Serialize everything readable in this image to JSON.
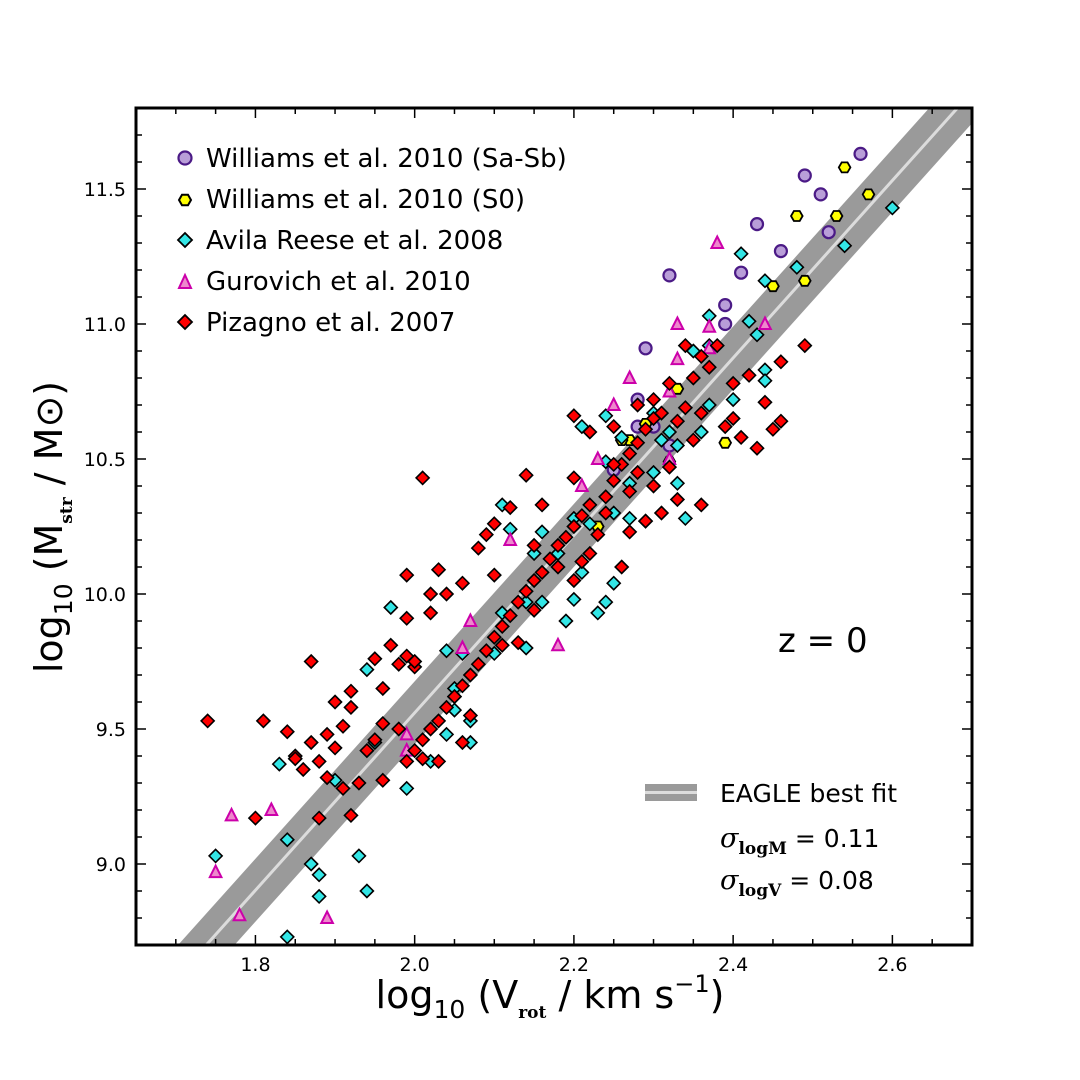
{
  "chart_data": {
    "type": "scatter",
    "xlabel": {
      "prefix": "log",
      "sub": "10",
      "open": " (V",
      "var_sub": "rot",
      "unit": " / km s",
      "sup": "−1",
      "close": ")"
    },
    "ylabel": {
      "prefix": "log",
      "sub": "10",
      "open": " (M",
      "var_sub": "str",
      "unit": " / M",
      "sun": "⊙",
      "close": ")"
    },
    "xlim": [
      1.65,
      2.7
    ],
    "ylim": [
      8.7,
      11.8
    ],
    "xticks": [
      "1.8",
      "2.0",
      "2.2",
      "2.4",
      "2.6"
    ],
    "yticks": [
      "9.0",
      "9.5",
      "10.0",
      "10.5",
      "11.0",
      "11.5"
    ],
    "annotation": "z = 0",
    "fit": {
      "name": "EAGLE best fit",
      "x": [
        1.72,
        2.7
      ],
      "y": [
        8.64,
        11.86
      ],
      "sigma_logM_label": {
        "sym": "σ",
        "sub": "logM",
        "val": " = 0.11"
      },
      "sigma_logV_label": {
        "sym": "σ",
        "sub": "logV",
        "val": " = 0.08"
      },
      "band_color": "#9a9a9a",
      "line_color": "#dcdcdc"
    },
    "series": [
      {
        "name": "Williams et al. 2010 (Sa-Sb)",
        "marker": "circle",
        "fill": "#b99ed8",
        "edge": "#4b1a86",
        "points": [
          [
            2.56,
            11.63
          ],
          [
            2.49,
            11.55
          ],
          [
            2.51,
            11.48
          ],
          [
            2.43,
            11.37
          ],
          [
            2.52,
            11.34
          ],
          [
            2.46,
            11.27
          ],
          [
            2.32,
            11.18
          ],
          [
            2.41,
            11.19
          ],
          [
            2.39,
            11.07
          ],
          [
            2.39,
            11.0
          ],
          [
            2.29,
            10.91
          ],
          [
            2.28,
            10.72
          ],
          [
            2.25,
            10.46
          ],
          [
            2.3,
            10.62
          ],
          [
            2.28,
            10.62
          ],
          [
            2.32,
            10.55
          ]
        ]
      },
      {
        "name": "Williams et al. 2010 (S0)",
        "marker": "hexagon",
        "fill": "#ffff00",
        "edge": "#000000",
        "points": [
          [
            2.54,
            11.58
          ],
          [
            2.57,
            11.48
          ],
          [
            2.48,
            11.4
          ],
          [
            2.53,
            11.4
          ],
          [
            2.45,
            11.14
          ],
          [
            2.49,
            11.16
          ],
          [
            2.33,
            10.76
          ],
          [
            2.27,
            10.57
          ],
          [
            2.29,
            10.63
          ],
          [
            2.32,
            10.49
          ],
          [
            2.39,
            10.56
          ],
          [
            2.23,
            10.25
          ],
          [
            2.26,
            10.57
          ]
        ]
      },
      {
        "name": "Avila Reese et al. 2008",
        "marker": "diamond",
        "fill": "#33e6e6",
        "edge": "#000000",
        "points": [
          [
            2.6,
            11.43
          ],
          [
            2.54,
            11.29
          ],
          [
            2.48,
            11.21
          ],
          [
            2.41,
            11.26
          ],
          [
            2.44,
            11.16
          ],
          [
            2.37,
            11.03
          ],
          [
            2.43,
            10.96
          ],
          [
            2.42,
            11.01
          ],
          [
            2.37,
            10.92
          ],
          [
            2.35,
            10.9
          ],
          [
            2.44,
            10.83
          ],
          [
            2.44,
            10.79
          ],
          [
            2.4,
            10.72
          ],
          [
            2.37,
            10.7
          ],
          [
            2.36,
            10.6
          ],
          [
            2.32,
            10.6
          ],
          [
            2.31,
            10.57
          ],
          [
            2.3,
            10.67
          ],
          [
            2.33,
            10.55
          ],
          [
            2.26,
            10.58
          ],
          [
            2.24,
            10.66
          ],
          [
            2.21,
            10.62
          ],
          [
            2.24,
            10.49
          ],
          [
            2.3,
            10.45
          ],
          [
            2.33,
            10.41
          ],
          [
            2.27,
            10.41
          ],
          [
            2.25,
            10.3
          ],
          [
            2.27,
            10.28
          ],
          [
            2.34,
            10.28
          ],
          [
            2.29,
            10.27
          ],
          [
            2.2,
            10.28
          ],
          [
            2.22,
            10.26
          ],
          [
            2.16,
            10.23
          ],
          [
            2.12,
            10.24
          ],
          [
            2.15,
            10.15
          ],
          [
            2.18,
            10.15
          ],
          [
            2.21,
            10.08
          ],
          [
            2.25,
            10.04
          ],
          [
            2.2,
            9.98
          ],
          [
            2.24,
            9.97
          ],
          [
            2.23,
            9.93
          ],
          [
            2.16,
            9.97
          ],
          [
            2.14,
            9.97
          ],
          [
            2.19,
            9.9
          ],
          [
            2.11,
            9.93
          ],
          [
            2.14,
            9.8
          ],
          [
            2.1,
            9.78
          ],
          [
            2.06,
            9.78
          ],
          [
            2.04,
            9.79
          ],
          [
            1.97,
            9.95
          ],
          [
            1.94,
            9.72
          ],
          [
            2.05,
            9.65
          ],
          [
            2.07,
            9.53
          ],
          [
            2.05,
            9.57
          ],
          [
            2.04,
            9.48
          ],
          [
            2.07,
            9.45
          ],
          [
            2.02,
            9.38
          ],
          [
            1.95,
            9.45
          ],
          [
            1.83,
            9.37
          ],
          [
            1.9,
            9.31
          ],
          [
            1.99,
            9.28
          ],
          [
            1.84,
            9.09
          ],
          [
            1.75,
            9.03
          ],
          [
            1.87,
            9.0
          ],
          [
            1.93,
            9.03
          ],
          [
            1.88,
            8.96
          ],
          [
            1.94,
            8.9
          ],
          [
            1.88,
            8.88
          ],
          [
            1.84,
            8.73
          ],
          [
            2.11,
            10.33
          ]
        ]
      },
      {
        "name": "Gurovich et al. 2010",
        "marker": "triangle",
        "fill": "#ee88cc",
        "edge": "#cc00aa",
        "points": [
          [
            2.38,
            11.3
          ],
          [
            2.33,
            11.0
          ],
          [
            2.37,
            10.99
          ],
          [
            2.37,
            10.91
          ],
          [
            2.33,
            10.87
          ],
          [
            2.27,
            10.8
          ],
          [
            2.25,
            10.7
          ],
          [
            2.32,
            10.75
          ],
          [
            2.21,
            10.4
          ],
          [
            2.23,
            10.5
          ],
          [
            2.12,
            10.2
          ],
          [
            2.18,
            9.81
          ],
          [
            2.06,
            9.8
          ],
          [
            2.07,
            9.9
          ],
          [
            1.99,
            9.48
          ],
          [
            1.99,
            9.42
          ],
          [
            1.82,
            9.2
          ],
          [
            1.77,
            9.18
          ],
          [
            1.75,
            8.97
          ],
          [
            1.78,
            8.81
          ],
          [
            1.89,
            8.8
          ],
          [
            2.32,
            10.5
          ],
          [
            2.44,
            11.0
          ]
        ]
      },
      {
        "name": "Pizagno et al. 2007",
        "marker": "diamond",
        "fill": "#ff0000",
        "edge": "#000000",
        "points": [
          [
            2.49,
            10.92
          ],
          [
            2.46,
            10.86
          ],
          [
            2.42,
            10.81
          ],
          [
            2.4,
            10.78
          ],
          [
            2.38,
            10.92
          ],
          [
            2.36,
            10.88
          ],
          [
            2.34,
            10.92
          ],
          [
            2.44,
            10.71
          ],
          [
            2.4,
            10.65
          ],
          [
            2.45,
            10.61
          ],
          [
            2.46,
            10.64
          ],
          [
            2.41,
            10.58
          ],
          [
            2.43,
            10.54
          ],
          [
            2.39,
            10.62
          ],
          [
            2.36,
            10.67
          ],
          [
            2.35,
            10.57
          ],
          [
            2.34,
            10.69
          ],
          [
            2.33,
            10.64
          ],
          [
            2.31,
            10.67
          ],
          [
            2.3,
            10.65
          ],
          [
            2.29,
            10.61
          ],
          [
            2.28,
            10.56
          ],
          [
            2.27,
            10.52
          ],
          [
            2.26,
            10.48
          ],
          [
            2.25,
            10.42
          ],
          [
            2.24,
            10.36
          ],
          [
            2.22,
            10.33
          ],
          [
            2.21,
            10.29
          ],
          [
            2.2,
            10.25
          ],
          [
            2.19,
            10.21
          ],
          [
            2.18,
            10.18
          ],
          [
            2.17,
            10.13
          ],
          [
            2.16,
            10.08
          ],
          [
            2.15,
            10.05
          ],
          [
            2.14,
            10.01
          ],
          [
            2.13,
            9.97
          ],
          [
            2.12,
            9.92
          ],
          [
            2.11,
            9.88
          ],
          [
            2.1,
            9.84
          ],
          [
            2.09,
            9.79
          ],
          [
            2.08,
            9.74
          ],
          [
            2.07,
            9.7
          ],
          [
            2.06,
            9.66
          ],
          [
            2.05,
            9.62
          ],
          [
            2.04,
            9.58
          ],
          [
            2.03,
            9.53
          ],
          [
            2.02,
            9.5
          ],
          [
            2.01,
            9.46
          ],
          [
            2.0,
            9.42
          ],
          [
            1.99,
            9.38
          ],
          [
            2.2,
            10.66
          ],
          [
            2.22,
            10.6
          ],
          [
            2.25,
            10.62
          ],
          [
            2.28,
            10.7
          ],
          [
            2.3,
            10.72
          ],
          [
            2.32,
            10.78
          ],
          [
            2.35,
            10.8
          ],
          [
            2.37,
            10.84
          ],
          [
            2.27,
            10.38
          ],
          [
            2.24,
            10.3
          ],
          [
            2.23,
            10.22
          ],
          [
            2.22,
            10.15
          ],
          [
            2.21,
            10.12
          ],
          [
            2.2,
            10.05
          ],
          [
            2.18,
            10.1
          ],
          [
            2.14,
            10.44
          ],
          [
            2.12,
            10.32
          ],
          [
            2.1,
            10.26
          ],
          [
            2.09,
            10.22
          ],
          [
            2.16,
            10.33
          ],
          [
            2.2,
            10.43
          ],
          [
            2.08,
            10.17
          ],
          [
            2.06,
            10.04
          ],
          [
            2.04,
            10.0
          ],
          [
            2.02,
            9.93
          ],
          [
            2.01,
            10.43
          ],
          [
            2.03,
            10.09
          ],
          [
            2.02,
            10.0
          ],
          [
            1.99,
            9.91
          ],
          [
            1.97,
            9.81
          ],
          [
            1.99,
            9.77
          ],
          [
            1.98,
            9.74
          ],
          [
            1.96,
            9.65
          ],
          [
            1.95,
            9.76
          ],
          [
            1.92,
            9.58
          ],
          [
            1.91,
            9.51
          ],
          [
            1.89,
            9.48
          ],
          [
            1.87,
            9.45
          ],
          [
            1.85,
            9.4
          ],
          [
            1.84,
            9.49
          ],
          [
            1.86,
            9.35
          ],
          [
            1.81,
            9.53
          ],
          [
            1.74,
            9.53
          ],
          [
            1.8,
            9.17
          ],
          [
            1.88,
            9.17
          ],
          [
            1.9,
            9.43
          ],
          [
            1.89,
            9.32
          ],
          [
            1.91,
            9.28
          ],
          [
            1.93,
            9.3
          ],
          [
            1.95,
            9.46
          ],
          [
            1.96,
            9.52
          ],
          [
            1.98,
            9.5
          ],
          [
            2.01,
            9.39
          ],
          [
            2.03,
            9.38
          ],
          [
            1.92,
            9.18
          ],
          [
            1.99,
            10.07
          ],
          [
            2.0,
            9.73
          ],
          [
            1.96,
            9.31
          ],
          [
            1.94,
            9.42
          ],
          [
            2.1,
            10.07
          ],
          [
            2.13,
            9.82
          ],
          [
            2.15,
            9.94
          ],
          [
            2.26,
            10.1
          ],
          [
            2.27,
            10.23
          ],
          [
            2.29,
            10.27
          ],
          [
            2.31,
            10.3
          ],
          [
            2.33,
            10.35
          ],
          [
            2.28,
            10.45
          ],
          [
            2.3,
            10.4
          ],
          [
            2.32,
            10.47
          ],
          [
            2.36,
            10.33
          ],
          [
            2.25,
            10.48
          ],
          [
            1.87,
            9.75
          ],
          [
            1.92,
            9.64
          ],
          [
            1.9,
            9.6
          ],
          [
            1.85,
            9.39
          ],
          [
            1.88,
            9.38
          ],
          [
            2.06,
            9.45
          ],
          [
            2.07,
            9.55
          ],
          [
            2.05,
            9.62
          ],
          [
            2.0,
            9.75
          ],
          [
            2.11,
            9.81
          ],
          [
            2.15,
            10.18
          ]
        ]
      }
    ]
  }
}
